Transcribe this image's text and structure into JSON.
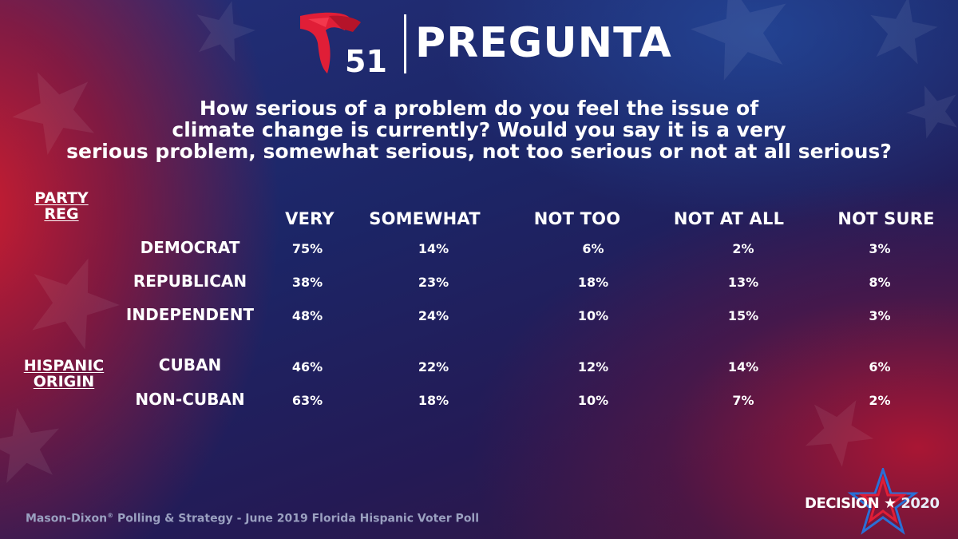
{
  "header": {
    "channel_number": "51",
    "title": "PREGUNTA"
  },
  "question": {
    "lines": [
      "How serious of a problem do you feel the issue of",
      "climate change is currently? Would you say it is a very",
      "serious problem, somewhat serious, not too serious or not at all serious?"
    ]
  },
  "chart_data": {
    "type": "table",
    "columns": [
      "VERY",
      "SOMEWHAT",
      "NOT TOO",
      "NOT AT ALL",
      "NOT SURE"
    ],
    "groups": [
      {
        "label": [
          "PARTY",
          "REG"
        ],
        "rows": [
          {
            "name": "DEMOCRAT",
            "values": [
              "75%",
              "14%",
              "6%",
              "2%",
              "3%"
            ]
          },
          {
            "name": "REPUBLICAN",
            "values": [
              "38%",
              "23%",
              "18%",
              "13%",
              "8%"
            ]
          },
          {
            "name": "INDEPENDENT",
            "values": [
              "48%",
              "24%",
              "10%",
              "15%",
              "3%"
            ]
          }
        ]
      },
      {
        "label": [
          "HISPANIC",
          "ORIGIN"
        ],
        "rows": [
          {
            "name": "CUBAN",
            "values": [
              "46%",
              "22%",
              "12%",
              "14%",
              "6%"
            ]
          },
          {
            "name": "NON-CUBAN",
            "values": [
              "63%",
              "18%",
              "10%",
              "7%",
              "2%"
            ]
          }
        ]
      }
    ]
  },
  "footer": {
    "source_name": "Mason-Dixon",
    "source_mark": "®",
    "source_rest": " Polling & Strategy - June 2019 Florida Hispanic Voter Poll",
    "decision_word": "DECISION",
    "decision_year": "2020"
  },
  "colors": {
    "brand_red": "#e01e37",
    "text": "#ffffff",
    "source_gray": "#9aa0c0"
  }
}
